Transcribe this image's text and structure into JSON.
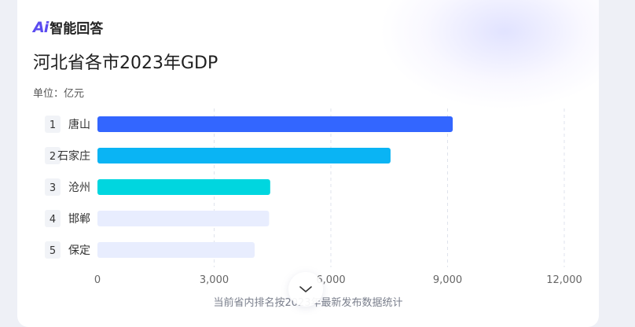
{
  "brand": {
    "logo": "Ai",
    "name": "智能回答"
  },
  "title": "河北省各市2023年GDP",
  "unit_label": "单位：亿元",
  "footnote": "当前省内排名按2023年最新发布数据统计",
  "chart_data": {
    "type": "bar",
    "orientation": "horizontal",
    "title": "河北省各市2023年GDP",
    "unit": "单位：亿元",
    "categories": [
      "唐山",
      "石家庄",
      "沧州",
      "邯郸",
      "保定"
    ],
    "ranks": [
      "1",
      "2",
      "3",
      "4",
      "5"
    ],
    "values": [
      9133,
      7534,
      4441,
      4412,
      4040
    ],
    "colors": [
      "#3366ff",
      "#0ab4f4",
      "#00d6df",
      "#e8edfe",
      "#e8edfe"
    ],
    "xlim": [
      0,
      12000
    ],
    "xticks": [
      0,
      3000,
      6000,
      9000,
      12000
    ],
    "xtick_labels": [
      "0",
      "3,000",
      "6,000",
      "9,000",
      "12,000"
    ],
    "grid": "vertical-dashed",
    "legend": "none"
  },
  "icons": {
    "expand": "chevron-down-icon"
  }
}
